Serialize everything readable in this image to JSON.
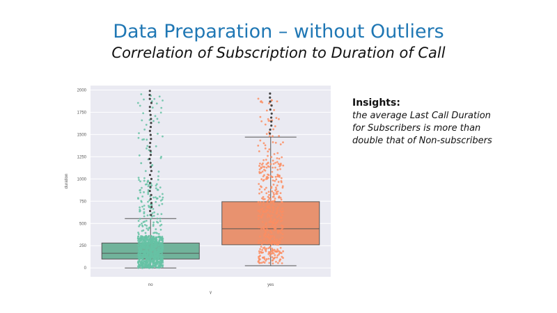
{
  "slide": {
    "title": "Data Preparation – without Outliers",
    "subtitle": "Correlation of Subscription to Duration of Call"
  },
  "insights": {
    "heading": "Insights:",
    "lines": [
      "the average Last Call Duration",
      "for Subscribers is more than",
      "double that of Non-subscribers"
    ]
  },
  "colors": {
    "title": "#1f77b4",
    "plot_bg": "#eaeaf2",
    "no_box": "#66c2a5",
    "no_box_fill": "#71b39b",
    "yes_box": "#fc8d62",
    "yes_box_fill": "#e8926f",
    "whisker": "#555555"
  },
  "chart_data": {
    "type": "box",
    "title": "",
    "xlabel": "y",
    "ylabel": "duration",
    "categories": [
      "no",
      "yes"
    ],
    "ylim": [
      -100,
      2050
    ],
    "yticks": [
      0,
      250,
      500,
      750,
      1000,
      1250,
      1500,
      1750,
      2000
    ],
    "grid": true,
    "series": [
      {
        "name": "no",
        "whisker_low": 0,
        "q1": 100,
        "median": 165,
        "q3": 280,
        "whisker_high": 555,
        "max_point": 2000
      },
      {
        "name": "yes",
        "whisker_low": 25,
        "q1": 260,
        "median": 440,
        "q3": 745,
        "whisker_high": 1470,
        "max_point": 1970
      }
    ]
  }
}
